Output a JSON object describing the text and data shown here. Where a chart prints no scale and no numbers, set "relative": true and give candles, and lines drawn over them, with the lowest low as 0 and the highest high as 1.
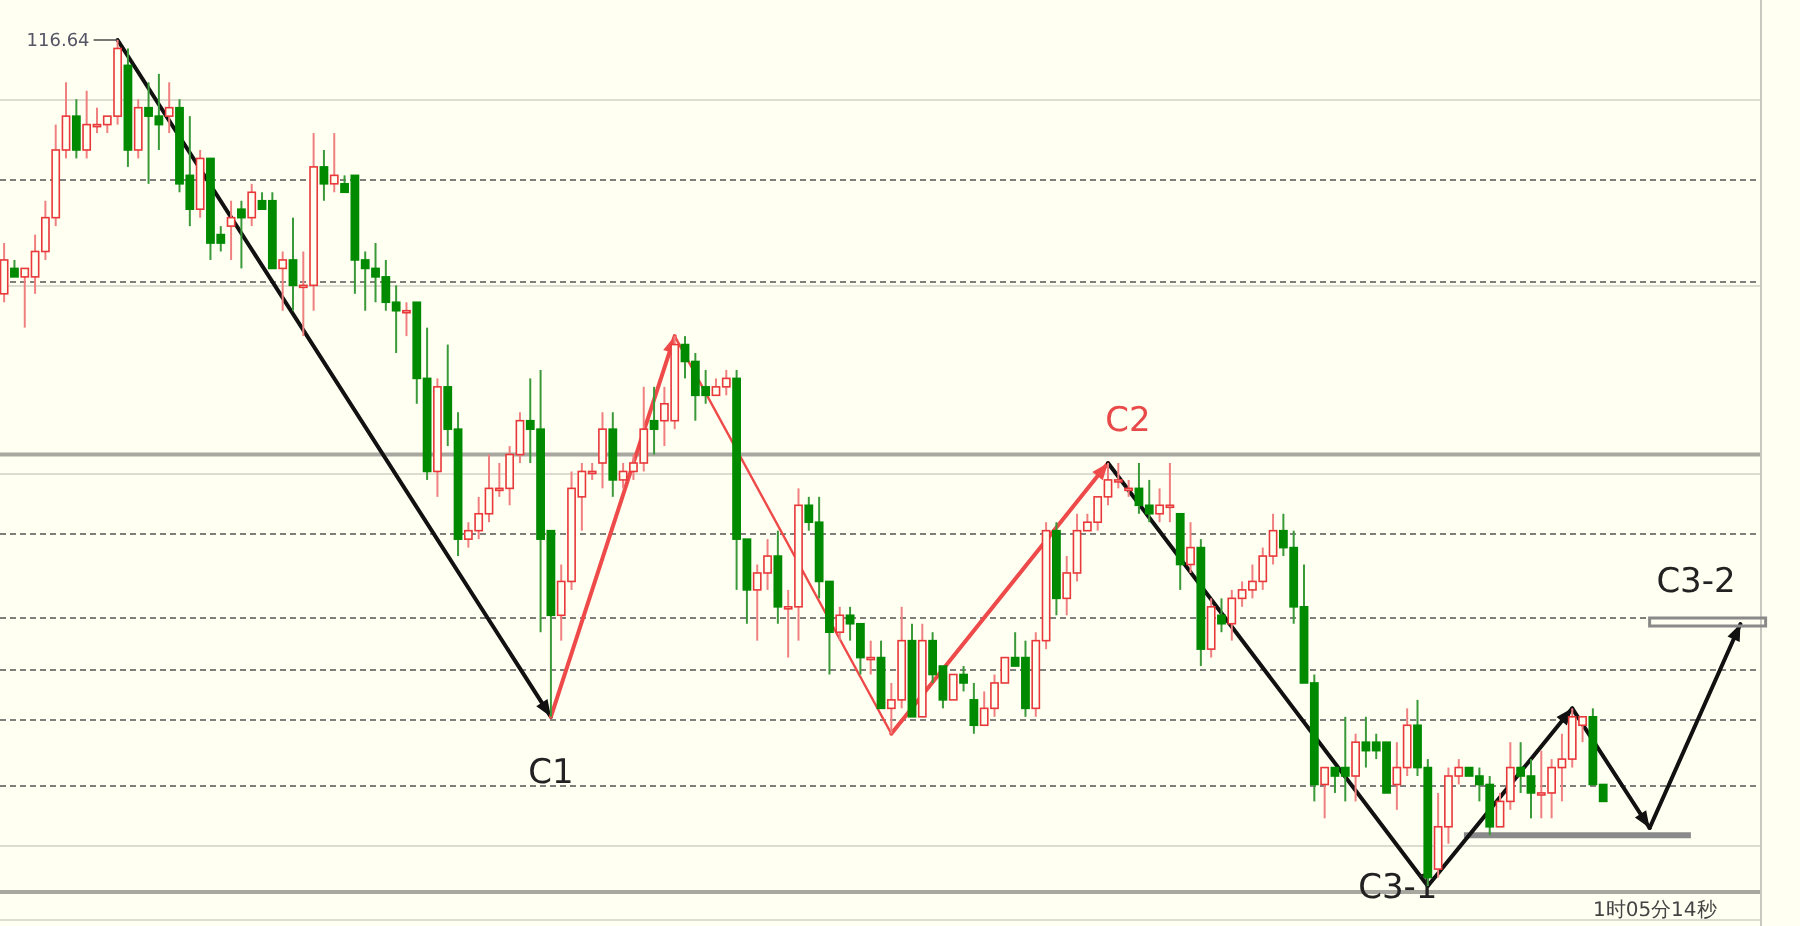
{
  "chart_data": {
    "type": "candlestick",
    "relative": true,
    "grid": "y",
    "categories": [
      null,
      null,
      null,
      null,
      null,
      null,
      null,
      null,
      null,
      null,
      null,
      null,
      null,
      null,
      null,
      null,
      null,
      null,
      null,
      null,
      null,
      null,
      null,
      null,
      null,
      null,
      null,
      null,
      null,
      null,
      null,
      null,
      null,
      null,
      null,
      null,
      null,
      null,
      null,
      null,
      null,
      null,
      null,
      null,
      null,
      null,
      null,
      null,
      null,
      null,
      null,
      null,
      null,
      null,
      null,
      null,
      null,
      null,
      null,
      null,
      null,
      null,
      null,
      null,
      null,
      null,
      null,
      null,
      null,
      null,
      null,
      null,
      null,
      null,
      null,
      null,
      null,
      null,
      null,
      null,
      null,
      null,
      null,
      null,
      null,
      null,
      null,
      null,
      null,
      null,
      null,
      null,
      null,
      null,
      null,
      null,
      null,
      null,
      null,
      null,
      null,
      null,
      null,
      null,
      null,
      null,
      null,
      null,
      null,
      null,
      null,
      null,
      null,
      null,
      null,
      null,
      null,
      null,
      null,
      null,
      null,
      null,
      null,
      null,
      null,
      null,
      null,
      null,
      null,
      null,
      null,
      null,
      null,
      null,
      null,
      null,
      null,
      null,
      null,
      null,
      null,
      null,
      null,
      null,
      null,
      null,
      null,
      null,
      null,
      null,
      null,
      null,
      null,
      null,
      null,
      null
    ],
    "ohlc": [
      [
        0.7,
        0.76,
        0.69,
        0.74
      ],
      [
        0.73,
        0.74,
        0.72,
        0.72
      ],
      [
        0.72,
        0.73,
        0.66,
        0.73
      ],
      [
        0.72,
        0.77,
        0.7,
        0.75
      ],
      [
        0.75,
        0.81,
        0.74,
        0.79
      ],
      [
        0.79,
        0.9,
        0.78,
        0.87
      ],
      [
        0.87,
        0.95,
        0.86,
        0.91
      ],
      [
        0.91,
        0.93,
        0.86,
        0.87
      ],
      [
        0.87,
        0.94,
        0.86,
        0.9
      ],
      [
        0.9,
        0.92,
        0.89,
        0.9
      ],
      [
        0.9,
        0.91,
        0.89,
        0.91
      ],
      [
        0.91,
        1.0,
        0.9,
        0.99
      ],
      [
        0.97,
        0.99,
        0.85,
        0.87
      ],
      [
        0.87,
        0.93,
        0.86,
        0.92
      ],
      [
        0.92,
        0.95,
        0.83,
        0.91
      ],
      [
        0.91,
        0.96,
        0.87,
        0.9
      ],
      [
        0.91,
        0.95,
        0.89,
        0.92
      ],
      [
        0.92,
        0.93,
        0.82,
        0.83
      ],
      [
        0.84,
        0.91,
        0.78,
        0.8
      ],
      [
        0.8,
        0.87,
        0.79,
        0.86
      ],
      [
        0.86,
        0.86,
        0.74,
        0.76
      ],
      [
        0.77,
        0.78,
        0.75,
        0.76
      ],
      [
        0.78,
        0.81,
        0.74,
        0.79
      ],
      [
        0.8,
        0.81,
        0.73,
        0.79
      ],
      [
        0.79,
        0.83,
        0.78,
        0.82
      ],
      [
        0.81,
        0.82,
        0.8,
        0.8
      ],
      [
        0.81,
        0.82,
        0.73,
        0.73
      ],
      [
        0.73,
        0.75,
        0.68,
        0.74
      ],
      [
        0.74,
        0.79,
        0.68,
        0.71
      ],
      [
        0.71,
        0.75,
        0.65,
        0.71
      ],
      [
        0.71,
        0.89,
        0.68,
        0.85
      ],
      [
        0.85,
        0.87,
        0.81,
        0.83
      ],
      [
        0.83,
        0.89,
        0.82,
        0.84
      ],
      [
        0.83,
        0.84,
        0.82,
        0.82
      ],
      [
        0.84,
        0.84,
        0.7,
        0.74
      ],
      [
        0.74,
        0.75,
        0.68,
        0.73
      ],
      [
        0.73,
        0.76,
        0.69,
        0.72
      ],
      [
        0.72,
        0.74,
        0.68,
        0.69
      ],
      [
        0.69,
        0.71,
        0.63,
        0.68
      ],
      [
        0.68,
        0.69,
        0.65,
        0.68
      ],
      [
        0.69,
        0.69,
        0.57,
        0.6
      ],
      [
        0.6,
        0.66,
        0.48,
        0.49
      ],
      [
        0.49,
        0.6,
        0.46,
        0.59
      ],
      [
        0.59,
        0.64,
        0.52,
        0.54
      ],
      [
        0.54,
        0.56,
        0.39,
        0.41
      ],
      [
        0.41,
        0.43,
        0.4,
        0.42
      ],
      [
        0.42,
        0.46,
        0.41,
        0.44
      ],
      [
        0.44,
        0.51,
        0.43,
        0.47
      ],
      [
        0.47,
        0.5,
        0.46,
        0.47
      ],
      [
        0.47,
        0.52,
        0.45,
        0.51
      ],
      [
        0.51,
        0.56,
        0.5,
        0.55
      ],
      [
        0.55,
        0.6,
        0.5,
        0.54
      ],
      [
        0.54,
        0.61,
        0.3,
        0.41
      ],
      [
        0.42,
        0.42,
        0.2,
        0.32
      ],
      [
        0.32,
        0.38,
        0.29,
        0.36
      ],
      [
        0.36,
        0.49,
        0.35,
        0.47
      ],
      [
        0.46,
        0.5,
        0.42,
        0.49
      ],
      [
        0.49,
        0.5,
        0.48,
        0.49
      ],
      [
        0.5,
        0.56,
        0.47,
        0.54
      ],
      [
        0.54,
        0.56,
        0.46,
        0.48
      ],
      [
        0.48,
        0.5,
        0.47,
        0.49
      ],
      [
        0.49,
        0.51,
        0.48,
        0.5
      ],
      [
        0.5,
        0.59,
        0.49,
        0.54
      ],
      [
        0.55,
        0.59,
        0.51,
        0.54
      ],
      [
        0.55,
        0.59,
        0.52,
        0.57
      ],
      [
        0.55,
        0.65,
        0.54,
        0.64
      ],
      [
        0.64,
        0.65,
        0.6,
        0.62
      ],
      [
        0.62,
        0.63,
        0.55,
        0.58
      ],
      [
        0.59,
        0.61,
        0.57,
        0.58
      ],
      [
        0.58,
        0.6,
        0.58,
        0.59
      ],
      [
        0.59,
        0.61,
        0.58,
        0.6
      ],
      [
        0.6,
        0.61,
        0.35,
        0.41
      ],
      [
        0.41,
        0.41,
        0.31,
        0.35
      ],
      [
        0.35,
        0.38,
        0.29,
        0.37
      ],
      [
        0.37,
        0.41,
        0.35,
        0.39
      ],
      [
        0.39,
        0.42,
        0.31,
        0.33
      ],
      [
        0.33,
        0.35,
        0.27,
        0.33
      ],
      [
        0.33,
        0.47,
        0.29,
        0.45
      ],
      [
        0.45,
        0.46,
        0.42,
        0.43
      ],
      [
        0.43,
        0.46,
        0.34,
        0.36
      ],
      [
        0.36,
        0.36,
        0.25,
        0.3
      ],
      [
        0.3,
        0.33,
        0.29,
        0.32
      ],
      [
        0.32,
        0.33,
        0.29,
        0.31
      ],
      [
        0.31,
        0.31,
        0.25,
        0.27
      ],
      [
        0.27,
        0.29,
        0.25,
        0.27
      ],
      [
        0.27,
        0.29,
        0.21,
        0.21
      ],
      [
        0.21,
        0.24,
        0.18,
        0.22
      ],
      [
        0.22,
        0.33,
        0.21,
        0.29
      ],
      [
        0.29,
        0.31,
        0.2,
        0.2
      ],
      [
        0.2,
        0.31,
        0.2,
        0.29
      ],
      [
        0.29,
        0.3,
        0.24,
        0.25
      ],
      [
        0.26,
        0.26,
        0.21,
        0.22
      ],
      [
        0.22,
        0.25,
        0.22,
        0.25
      ],
      [
        0.25,
        0.26,
        0.23,
        0.24
      ],
      [
        0.22,
        0.24,
        0.18,
        0.19
      ],
      [
        0.19,
        0.23,
        0.19,
        0.21
      ],
      [
        0.21,
        0.25,
        0.2,
        0.24
      ],
      [
        0.24,
        0.27,
        0.24,
        0.27
      ],
      [
        0.27,
        0.3,
        0.26,
        0.26
      ],
      [
        0.27,
        0.29,
        0.2,
        0.21
      ],
      [
        0.21,
        0.3,
        0.2,
        0.29
      ],
      [
        0.29,
        0.43,
        0.28,
        0.42
      ],
      [
        0.42,
        0.43,
        0.32,
        0.34
      ],
      [
        0.34,
        0.39,
        0.32,
        0.37
      ],
      [
        0.37,
        0.44,
        0.36,
        0.42
      ],
      [
        0.42,
        0.44,
        0.42,
        0.43
      ],
      [
        0.43,
        0.46,
        0.42,
        0.46
      ],
      [
        0.46,
        0.5,
        0.45,
        0.48
      ],
      [
        0.48,
        0.5,
        0.47,
        0.48
      ],
      [
        0.47,
        0.48,
        0.46,
        0.47
      ],
      [
        0.47,
        0.5,
        0.44,
        0.45
      ],
      [
        0.45,
        0.48,
        0.43,
        0.44
      ],
      [
        0.44,
        0.47,
        0.43,
        0.45
      ],
      [
        0.45,
        0.5,
        0.43,
        0.45
      ],
      [
        0.44,
        0.44,
        0.35,
        0.38
      ],
      [
        0.38,
        0.43,
        0.37,
        0.4
      ],
      [
        0.4,
        0.41,
        0.26,
        0.28
      ],
      [
        0.28,
        0.34,
        0.27,
        0.33
      ],
      [
        0.32,
        0.34,
        0.3,
        0.31
      ],
      [
        0.31,
        0.35,
        0.29,
        0.34
      ],
      [
        0.34,
        0.36,
        0.33,
        0.35
      ],
      [
        0.35,
        0.38,
        0.34,
        0.36
      ],
      [
        0.36,
        0.4,
        0.35,
        0.39
      ],
      [
        0.39,
        0.44,
        0.38,
        0.42
      ],
      [
        0.42,
        0.44,
        0.39,
        0.4
      ],
      [
        0.4,
        0.42,
        0.31,
        0.33
      ],
      [
        0.33,
        0.38,
        0.24,
        0.24
      ],
      [
        0.24,
        0.25,
        0.1,
        0.12
      ],
      [
        0.12,
        0.14,
        0.08,
        0.14
      ],
      [
        0.14,
        0.14,
        0.11,
        0.13
      ],
      [
        0.14,
        0.2,
        0.1,
        0.13
      ],
      [
        0.13,
        0.18,
        0.1,
        0.17
      ],
      [
        0.17,
        0.2,
        0.14,
        0.16
      ],
      [
        0.17,
        0.18,
        0.15,
        0.16
      ],
      [
        0.17,
        0.17,
        0.11,
        0.11
      ],
      [
        0.12,
        0.17,
        0.09,
        0.14
      ],
      [
        0.14,
        0.21,
        0.13,
        0.19
      ],
      [
        0.19,
        0.22,
        0.13,
        0.14
      ],
      [
        0.14,
        0.15,
        0.0,
        0.01
      ],
      [
        0.02,
        0.11,
        0.01,
        0.07
      ],
      [
        0.07,
        0.14,
        0.05,
        0.13
      ],
      [
        0.13,
        0.15,
        0.12,
        0.14
      ],
      [
        0.14,
        0.14,
        0.13,
        0.13
      ],
      [
        0.13,
        0.14,
        0.1,
        0.12
      ],
      [
        0.12,
        0.13,
        0.06,
        0.07
      ],
      [
        0.07,
        0.11,
        0.07,
        0.1
      ],
      [
        0.1,
        0.17,
        0.09,
        0.14
      ],
      [
        0.14,
        0.17,
        0.11,
        0.13
      ],
      [
        0.13,
        0.15,
        0.08,
        0.11
      ],
      [
        0.11,
        0.16,
        0.08,
        0.11
      ],
      [
        0.11,
        0.15,
        0.08,
        0.14
      ],
      [
        0.14,
        0.18,
        0.1,
        0.15
      ],
      [
        0.15,
        0.21,
        0.14,
        0.2
      ],
      [
        0.19,
        0.2,
        0.17,
        0.2
      ],
      [
        0.2,
        0.21,
        0.12,
        0.12
      ],
      [
        0.12,
        0.12,
        0.1,
        0.1
      ]
    ],
    "ref_lines": [
      {
        "axis": "y",
        "value": 0.51,
        "color": "#a8a8a0"
      },
      {
        "axis": "y",
        "value": 0.06,
        "color": "#8a8a8a"
      }
    ],
    "annotations": [
      "116.64",
      "C1",
      "C2",
      "C3-1",
      "C3-2",
      "1时05分14秒"
    ]
  }
}
